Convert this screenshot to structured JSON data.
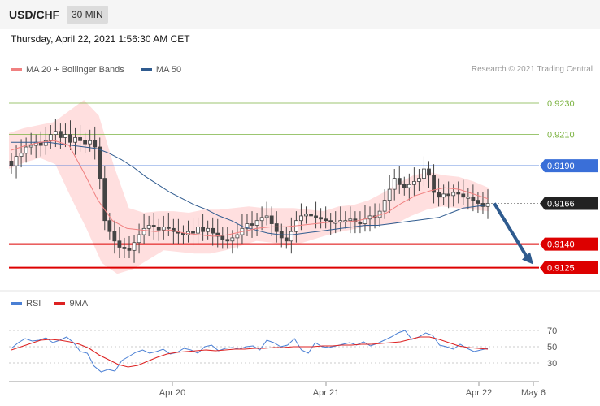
{
  "header": {
    "symbol": "USD/CHF",
    "timeframe": "30 MIN"
  },
  "date_line": "Thursday, April 22, 2021 1:56:30 AM CET",
  "legend": {
    "items": [
      {
        "label": "MA 20 + Bollinger Bands",
        "color": "#f08080"
      },
      {
        "label": "MA 50",
        "color": "#2f5b8f"
      }
    ],
    "credit": "Research © 2021 Trading Central"
  },
  "rsi_legend": {
    "items": [
      {
        "label": "RSI",
        "color": "#4a7fd4"
      },
      {
        "label": "9MA",
        "color": "#dd2222"
      }
    ]
  },
  "colors": {
    "resistance": "#7cb342",
    "pivot": "#3a6fd8",
    "support": "#dd0000",
    "current": "#222222",
    "arrow": "#2f5b8f",
    "candle": "#444444",
    "band": "#ffd9d9"
  },
  "chart_data": [
    {
      "type": "candlestick",
      "instrument": "USD/CHF",
      "interval": "30 MIN",
      "ylim": [
        0.9117,
        0.9244
      ],
      "x_ticks": [
        "Apr 20",
        "Apr 21",
        "Apr 22",
        "May 6"
      ],
      "levels": [
        {
          "value": 0.923,
          "label": "0.9230",
          "kind": "resistance"
        },
        {
          "value": 0.921,
          "label": "0.9210",
          "kind": "resistance"
        },
        {
          "value": 0.919,
          "label": "0.9190",
          "kind": "pivot"
        },
        {
          "value": 0.9166,
          "label": "0.9166",
          "kind": "current"
        },
        {
          "value": 0.914,
          "label": "0.9140",
          "kind": "support"
        },
        {
          "value": 0.9125,
          "label": "0.9125",
          "kind": "support"
        }
      ],
      "forecast_arrow": {
        "from": 0.9166,
        "to": 0.9125
      },
      "close_series": [
        0.919,
        0.9196,
        0.9198,
        0.9202,
        0.9203,
        0.9205,
        0.9203,
        0.9206,
        0.921,
        0.9212,
        0.9208,
        0.921,
        0.9205,
        0.9208,
        0.9206,
        0.9204,
        0.9206,
        0.9202,
        0.9182,
        0.9155,
        0.9148,
        0.9142,
        0.9138,
        0.9137,
        0.9136,
        0.9141,
        0.9146,
        0.915,
        0.9152,
        0.9151,
        0.9149,
        0.9151,
        0.915,
        0.9148,
        0.9147,
        0.9146,
        0.9148,
        0.9147,
        0.9151,
        0.9148,
        0.915,
        0.9147,
        0.9145,
        0.9143,
        0.9142,
        0.9144,
        0.9146,
        0.915,
        0.9153,
        0.9152,
        0.9155,
        0.9157,
        0.9158,
        0.9153,
        0.9148,
        0.9144,
        0.9142,
        0.9148,
        0.9155,
        0.9158,
        0.9159,
        0.9158,
        0.9157,
        0.9156,
        0.9155,
        0.9154,
        0.9154,
        0.9155,
        0.9155,
        0.9156,
        0.9154,
        0.9153,
        0.9156,
        0.9158,
        0.9157,
        0.9161,
        0.9168,
        0.9175,
        0.9182,
        0.9178,
        0.9176,
        0.9178,
        0.918,
        0.9182,
        0.9188,
        0.9184,
        0.9173,
        0.917,
        0.9172,
        0.9171,
        0.9173,
        0.9172,
        0.917,
        0.917,
        0.9168,
        0.9166,
        0.9164,
        0.9166
      ],
      "ma50": [
        0.9205,
        0.9205,
        0.9205,
        0.9205,
        0.9204,
        0.9203,
        0.9202,
        0.9201,
        0.9198,
        0.9194,
        0.9189,
        0.9183,
        0.9178,
        0.9173,
        0.9169,
        0.9165,
        0.9162,
        0.9158,
        0.9155,
        0.9151,
        0.9149,
        0.9147,
        0.9146,
        0.9146,
        0.9147,
        0.9148,
        0.9149,
        0.915,
        0.9151,
        0.9152,
        0.9152,
        0.9153,
        0.9154,
        0.9155,
        0.9156,
        0.9157,
        0.916,
        0.9163,
        0.9164,
        0.9165
      ],
      "ma20": [
        0.92,
        0.9203,
        0.9205,
        0.9206,
        0.9203,
        0.9186,
        0.9168,
        0.9155,
        0.915,
        0.9149,
        0.9148,
        0.9149,
        0.9147,
        0.9146,
        0.9145,
        0.9146,
        0.9148,
        0.915,
        0.9151,
        0.9151,
        0.9152,
        0.9153,
        0.9154,
        0.9154,
        0.9155,
        0.9157,
        0.916,
        0.9166,
        0.9171,
        0.9174,
        0.9176,
        0.9175,
        0.9172,
        0.9169
      ],
      "bb_upper": [
        0.9211,
        0.9214,
        0.9216,
        0.9218,
        0.9225,
        0.9232,
        0.9222,
        0.919,
        0.9163,
        0.916,
        0.9161,
        0.9161,
        0.916,
        0.9162,
        0.9162,
        0.9163,
        0.9164,
        0.9163,
        0.9163,
        0.9163,
        0.9162,
        0.9161,
        0.9164,
        0.9165,
        0.9168,
        0.9173,
        0.9179,
        0.9184,
        0.9186,
        0.9184,
        0.9183,
        0.918,
        0.9176
      ],
      "bb_lower": [
        0.9188,
        0.9192,
        0.9195,
        0.9191,
        0.917,
        0.915,
        0.9128,
        0.9121,
        0.9124,
        0.913,
        0.9136,
        0.9135,
        0.9134,
        0.9134,
        0.9136,
        0.9139,
        0.9142,
        0.9141,
        0.9139,
        0.9141,
        0.9144,
        0.9147,
        0.9149,
        0.9151,
        0.9152,
        0.9153,
        0.9158,
        0.9162,
        0.9164,
        0.9163,
        0.9162,
        0.9161
      ]
    },
    {
      "type": "line",
      "indicator": "RSI",
      "ylim": [
        15,
        85
      ],
      "y_ticks": [
        70,
        50,
        30
      ],
      "series": [
        {
          "name": "RSI",
          "values": [
            48,
            55,
            60,
            57,
            58,
            61,
            55,
            58,
            62,
            55,
            44,
            42,
            26,
            19,
            22,
            20,
            33,
            38,
            43,
            46,
            42,
            44,
            47,
            41,
            43,
            48,
            46,
            42,
            50,
            52,
            45,
            48,
            49,
            47,
            50,
            51,
            46,
            58,
            55,
            50,
            52,
            60,
            46,
            42,
            55,
            50,
            49,
            51,
            53,
            55,
            52,
            56,
            51,
            54,
            58,
            62,
            67,
            70,
            59,
            62,
            67,
            64,
            52,
            50,
            47,
            53,
            48,
            44,
            46,
            48
          ]
        },
        {
          "name": "9MA",
          "values": [
            46,
            50,
            54,
            58,
            59,
            58,
            56,
            53,
            48,
            40,
            34,
            28,
            25,
            27,
            32,
            37,
            41,
            43,
            44,
            45,
            46,
            45,
            46,
            47,
            47,
            48,
            48,
            49,
            49,
            50,
            50,
            50,
            51,
            51,
            52,
            52,
            53,
            53,
            54,
            55,
            56,
            59,
            62,
            62,
            59,
            55,
            51,
            49,
            48,
            47
          ]
        }
      ]
    }
  ]
}
